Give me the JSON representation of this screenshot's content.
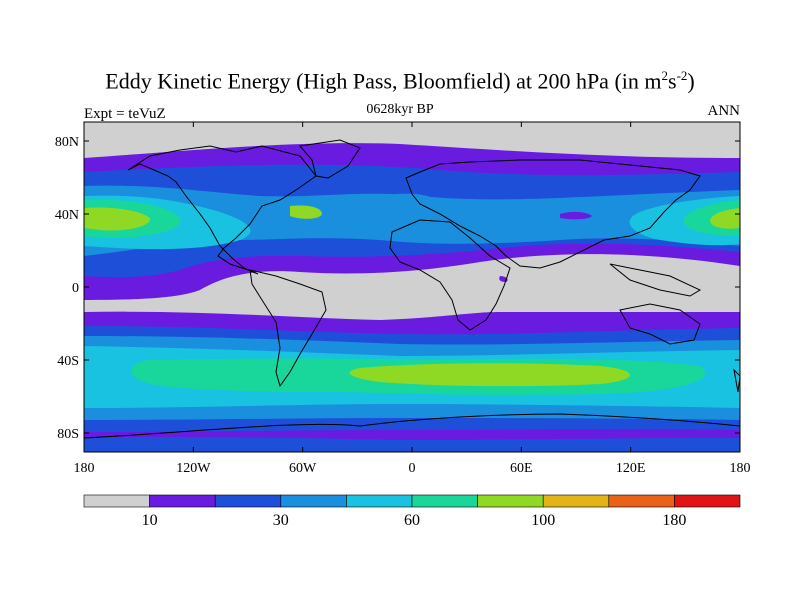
{
  "header": {
    "title_main": "Eddy Kinetic Energy (High Pass, Bloomfield) at 200 hPa (in m",
    "title_sup1": "2",
    "title_mid": "s",
    "title_sup2": "-2",
    "title_end": ")",
    "subtitle": "0628kyr BP",
    "left_label": "Expt = teVuZ",
    "right_label": "ANN"
  },
  "axes": {
    "lat_ticks": [
      "80N",
      "40N",
      "0",
      "40S",
      "80S"
    ],
    "lon_ticks": [
      "180",
      "120W",
      "60W",
      "0",
      "60E",
      "120E",
      "180"
    ]
  },
  "colorbar": {
    "colors": [
      "#d0d0d0",
      "#6a1be0",
      "#1e4fd8",
      "#1a8fde",
      "#19c2e0",
      "#19d79a",
      "#8fd823",
      "#e2b41a",
      "#e8621a",
      "#e01414"
    ],
    "labels": [
      "10",
      "30",
      "60",
      "100",
      "180"
    ]
  }
}
